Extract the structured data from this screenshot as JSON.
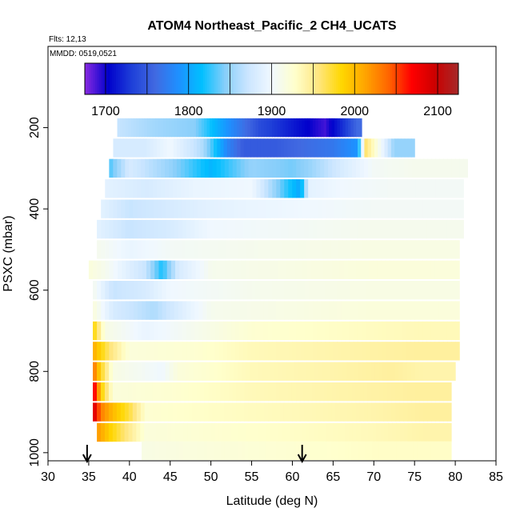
{
  "chart_data": {
    "type": "heatmap",
    "title": "ATOM4 Northeast_Pacific_2 CH4_UCATS",
    "flights_note": "Flts: 12,13",
    "dates_note": "MMDD: 0519,0521",
    "xlabel": "Latitude (deg N)",
    "ylabel": "PSXC (mbar)",
    "xlim": [
      30,
      85
    ],
    "ylim": [
      1020,
      0
    ],
    "x_ticks": [
      30,
      35,
      40,
      45,
      50,
      55,
      60,
      65,
      70,
      75,
      80,
      85
    ],
    "y_ticks": [
      200,
      400,
      600,
      800,
      1000
    ],
    "colorbar": {
      "range": [
        1675,
        2125
      ],
      "ticks": [
        1700,
        1800,
        1900,
        2000,
        2100
      ],
      "colors": [
        "#8a2be2",
        "#0000cc",
        "#1e3fd8",
        "#4169e1",
        "#1e90ff",
        "#00bfff",
        "#87cefa",
        "#cce6ff",
        "#f0f8ff",
        "#ffffcc",
        "#ffe680",
        "#ffd700",
        "#ffa500",
        "#ff6600",
        "#ff0000",
        "#cc0000",
        "#a52a2a"
      ]
    },
    "markers": [
      {
        "lat": 34.8,
        "label": "arrow"
      },
      {
        "lat": 61.2,
        "label": "arrow"
      }
    ],
    "bands": [
      {
        "p": 200,
        "lat_min": 38.5,
        "lat_max": 68.5,
        "segments": [
          [
            38.5,
            1870
          ],
          [
            43,
            1855
          ],
          [
            48,
            1845
          ],
          [
            52,
            1790
          ],
          [
            56,
            1740
          ],
          [
            60,
            1715
          ],
          [
            64,
            1690
          ],
          [
            66.5,
            1730
          ],
          [
            68,
            1760
          ]
        ]
      },
      {
        "p": 250,
        "lat_min": 38,
        "lat_max": 75,
        "segments": [
          [
            38,
            1880
          ],
          [
            42,
            1880
          ],
          [
            45,
            1900
          ],
          [
            49,
            1860
          ],
          [
            52,
            1780
          ],
          [
            54,
            1750
          ],
          [
            58,
            1750
          ],
          [
            61,
            1760
          ],
          [
            65,
            1770
          ],
          [
            68,
            1790
          ],
          [
            69,
            1960
          ],
          [
            70,
            1930
          ],
          [
            72.5,
            1850
          ]
        ]
      },
      {
        "p": 300,
        "lat_min": 37.5,
        "lat_max": 81.5,
        "segments": [
          [
            37.5,
            1830
          ],
          [
            40,
            1880
          ],
          [
            45,
            1850
          ],
          [
            50,
            1810
          ],
          [
            55,
            1850
          ],
          [
            60,
            1840
          ],
          [
            62,
            1850
          ],
          [
            66,
            1880
          ],
          [
            70,
            1905
          ],
          [
            75,
            1910
          ]
        ]
      },
      {
        "p": 350,
        "lat_min": 37,
        "lat_max": 81,
        "segments": [
          [
            37,
            1890
          ],
          [
            42,
            1880
          ],
          [
            48,
            1895
          ],
          [
            55,
            1900
          ],
          [
            59,
            1830
          ],
          [
            61,
            1800
          ],
          [
            62,
            1890
          ],
          [
            66,
            1900
          ],
          [
            72,
            1905
          ]
        ]
      },
      {
        "p": 400,
        "lat_min": 36.5,
        "lat_max": 81,
        "segments": [
          [
            36.5,
            1890
          ],
          [
            40,
            1870
          ],
          [
            45,
            1880
          ],
          [
            50,
            1890
          ],
          [
            55,
            1895
          ],
          [
            62,
            1900
          ],
          [
            70,
            1905
          ]
        ]
      },
      {
        "p": 450,
        "lat_min": 36,
        "lat_max": 81,
        "segments": [
          [
            36,
            1890
          ],
          [
            40,
            1870
          ],
          [
            45,
            1880
          ],
          [
            50,
            1900
          ],
          [
            60,
            1905
          ],
          [
            70,
            1910
          ]
        ]
      },
      {
        "p": 500,
        "lat_min": 36,
        "lat_max": 80.5,
        "segments": [
          [
            36,
            1910
          ],
          [
            40,
            1895
          ],
          [
            45,
            1905
          ],
          [
            55,
            1910
          ],
          [
            70,
            1915
          ]
        ]
      },
      {
        "p": 550,
        "lat_min": 35,
        "lat_max": 80.5,
        "segments": [
          [
            35,
            1920
          ],
          [
            37,
            1910
          ],
          [
            42,
            1870
          ],
          [
            44,
            1820
          ],
          [
            46,
            1880
          ],
          [
            50,
            1910
          ],
          [
            60,
            1915
          ],
          [
            70,
            1920
          ]
        ]
      },
      {
        "p": 600,
        "lat_min": 35.5,
        "lat_max": 80.5,
        "segments": [
          [
            35.5,
            1910
          ],
          [
            38,
            1870
          ],
          [
            42,
            1880
          ],
          [
            45,
            1900
          ],
          [
            55,
            1910
          ],
          [
            70,
            1915
          ]
        ]
      },
      {
        "p": 650,
        "lat_min": 35.5,
        "lat_max": 80.5,
        "segments": [
          [
            35.5,
            1920
          ],
          [
            38,
            1880
          ],
          [
            43,
            1860
          ],
          [
            47,
            1890
          ],
          [
            50,
            1910
          ],
          [
            60,
            1915
          ],
          [
            70,
            1920
          ]
        ]
      },
      {
        "p": 700,
        "lat_min": 35.5,
        "lat_max": 80.5,
        "segments": [
          [
            35.5,
            1990
          ],
          [
            37,
            1915
          ],
          [
            42,
            1895
          ],
          [
            48,
            1910
          ],
          [
            55,
            1925
          ],
          [
            65,
            1930
          ],
          [
            75,
            1935
          ]
        ]
      },
      {
        "p": 750,
        "lat_min": 35.5,
        "lat_max": 80.5,
        "segments": [
          [
            35.5,
            2010
          ],
          [
            37.5,
            1960
          ],
          [
            40,
            1920
          ],
          [
            48,
            1925
          ],
          [
            55,
            1935
          ],
          [
            65,
            1940
          ],
          [
            75,
            1945
          ]
        ]
      },
      {
        "p": 800,
        "lat_min": 35.5,
        "lat_max": 80,
        "segments": [
          [
            35.5,
            2040
          ],
          [
            36.5,
            1980
          ],
          [
            38,
            1915
          ],
          [
            44,
            1900
          ],
          [
            46,
            1920
          ],
          [
            55,
            1935
          ],
          [
            65,
            1940
          ],
          [
            72,
            1945
          ],
          [
            76,
            1940
          ]
        ]
      },
      {
        "p": 850,
        "lat_min": 35.5,
        "lat_max": 79.5,
        "segments": [
          [
            35.5,
            2090
          ],
          [
            36.5,
            1990
          ],
          [
            38,
            1920
          ],
          [
            45,
            1925
          ],
          [
            55,
            1935
          ],
          [
            65,
            1940
          ],
          [
            75,
            1945
          ]
        ]
      },
      {
        "p": 900,
        "lat_min": 35.5,
        "lat_max": 79.5,
        "segments": [
          [
            35.5,
            2100
          ],
          [
            36.5,
            2030
          ],
          [
            38,
            2000
          ],
          [
            40,
            1970
          ],
          [
            42,
            1925
          ],
          [
            50,
            1930
          ],
          [
            60,
            1935
          ],
          [
            70,
            1940
          ],
          [
            76,
            1945
          ]
        ]
      },
      {
        "p": 950,
        "lat_min": 36,
        "lat_max": 79.5,
        "segments": [
          [
            36,
            2020
          ],
          [
            37.5,
            1990
          ],
          [
            39,
            1965
          ],
          [
            42,
            1920
          ],
          [
            50,
            1925
          ],
          [
            60,
            1930
          ],
          [
            70,
            1935
          ],
          [
            76,
            1940
          ]
        ]
      },
      {
        "p": 995,
        "lat_min": 41.5,
        "lat_max": 79.5,
        "segments": [
          [
            41.5,
            1915
          ],
          [
            50,
            1920
          ],
          [
            60,
            1925
          ],
          [
            70,
            1930
          ]
        ]
      }
    ]
  }
}
